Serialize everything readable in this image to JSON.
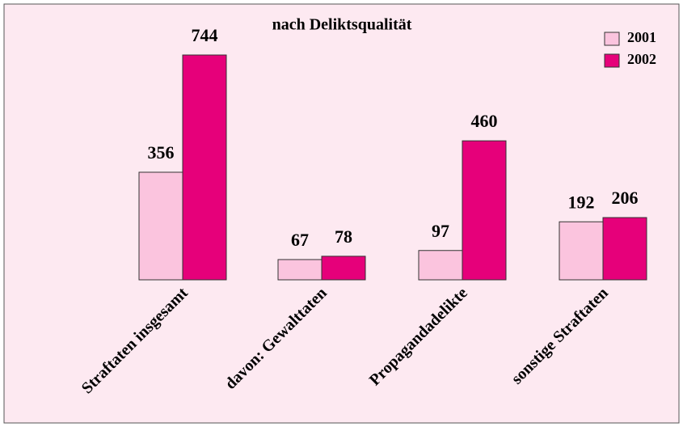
{
  "chart_data": {
    "type": "bar",
    "title": "nach Deliktsqualität",
    "categories": [
      "Straftaten insgesamt",
      "davon: Gewalttaten",
      "Propagandadelikte",
      "sonstige Straftaten"
    ],
    "series": [
      {
        "name": "2001",
        "color": "#fbc4de",
        "values": [
          356,
          67,
          97,
          192
        ]
      },
      {
        "name": "2002",
        "color": "#e6007a",
        "values": [
          744,
          78,
          460,
          206
        ]
      }
    ],
    "legend": "top-right"
  }
}
